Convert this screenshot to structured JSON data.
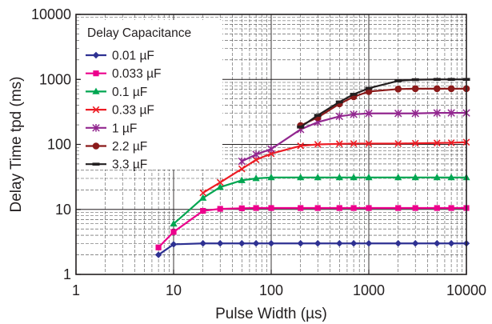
{
  "chart_data": {
    "type": "line",
    "xscale": "log",
    "yscale": "log",
    "xlim": [
      1,
      10000
    ],
    "ylim": [
      1,
      10000
    ],
    "xlabel": "Pulse Width  (µs)",
    "ylabel": "Delay Time  tpd  (ms)",
    "x_ticks": [
      "1",
      "10",
      "100",
      "1000",
      "10000"
    ],
    "y_ticks": [
      "1",
      "10",
      "100",
      "1000",
      "10000"
    ],
    "grid": true,
    "legend": {
      "title": "Delay Capacitance",
      "placement": "top-left"
    },
    "series": [
      {
        "name": "0.01 µF",
        "color": "#2e3192",
        "marker": "diamond",
        "x": [
          7,
          10,
          20,
          30,
          50,
          70,
          100,
          200,
          300,
          500,
          700,
          1000,
          2000,
          3000,
          5000,
          7000,
          10000
        ],
        "y": [
          2.0,
          2.9,
          3.0,
          3.0,
          3.0,
          3.0,
          3.0,
          3.0,
          3.0,
          3.0,
          3.0,
          3.0,
          3.0,
          3.0,
          3.0,
          3.0,
          3.0
        ]
      },
      {
        "name": "0.033 µF",
        "color": "#ec008c",
        "marker": "square",
        "x": [
          7,
          10,
          20,
          30,
          50,
          70,
          100,
          200,
          300,
          500,
          700,
          1000,
          2000,
          3000,
          5000,
          7000,
          10000
        ],
        "y": [
          2.6,
          4.5,
          9.5,
          10.2,
          10.4,
          10.5,
          10.5,
          10.5,
          10.5,
          10.5,
          10.5,
          10.5,
          10.5,
          10.5,
          10.5,
          10.5,
          10.5
        ]
      },
      {
        "name": "0.1 µF",
        "color": "#00a651",
        "marker": "triangle",
        "x": [
          10,
          20,
          30,
          50,
          70,
          100,
          200,
          300,
          500,
          700,
          1000,
          2000,
          3000,
          5000,
          7000,
          10000
        ],
        "y": [
          6.0,
          15,
          22,
          28,
          30,
          31,
          31,
          31,
          31,
          31,
          31,
          31,
          31,
          31,
          31,
          31
        ]
      },
      {
        "name": "0.33 µF",
        "color": "#ed1c24",
        "marker": "x",
        "x": [
          20,
          30,
          50,
          70,
          100,
          200,
          300,
          500,
          700,
          1000,
          2000,
          3000,
          5000,
          7000,
          10000
        ],
        "y": [
          18,
          26,
          42,
          58,
          72,
          95,
          100,
          102,
          103,
          103,
          103,
          104,
          105,
          106,
          108
        ]
      },
      {
        "name": "1 µF",
        "color": "#92278f",
        "marker": "star",
        "x": [
          50,
          70,
          100,
          200,
          300,
          500,
          700,
          1000,
          2000,
          3000,
          5000,
          7000,
          10000
        ],
        "y": [
          55,
          70,
          85,
          170,
          220,
          270,
          290,
          300,
          300,
          300,
          305,
          305,
          305
        ]
      },
      {
        "name": "2.2 µF",
        "color": "#8b1a1a",
        "marker": "circle",
        "x": [
          200,
          300,
          500,
          700,
          1000,
          2000,
          3000,
          5000,
          7000,
          10000
        ],
        "y": [
          195,
          260,
          420,
          540,
          650,
          710,
          720,
          720,
          720,
          720
        ]
      },
      {
        "name": "3.3 µF",
        "color": "#231f20",
        "marker": "dash",
        "x": [
          200,
          300,
          500,
          700,
          1000,
          2000,
          3000,
          5000,
          7000,
          10000
        ],
        "y": [
          185,
          280,
          450,
          590,
          730,
          950,
          990,
          1000,
          1000,
          1000
        ]
      }
    ]
  }
}
